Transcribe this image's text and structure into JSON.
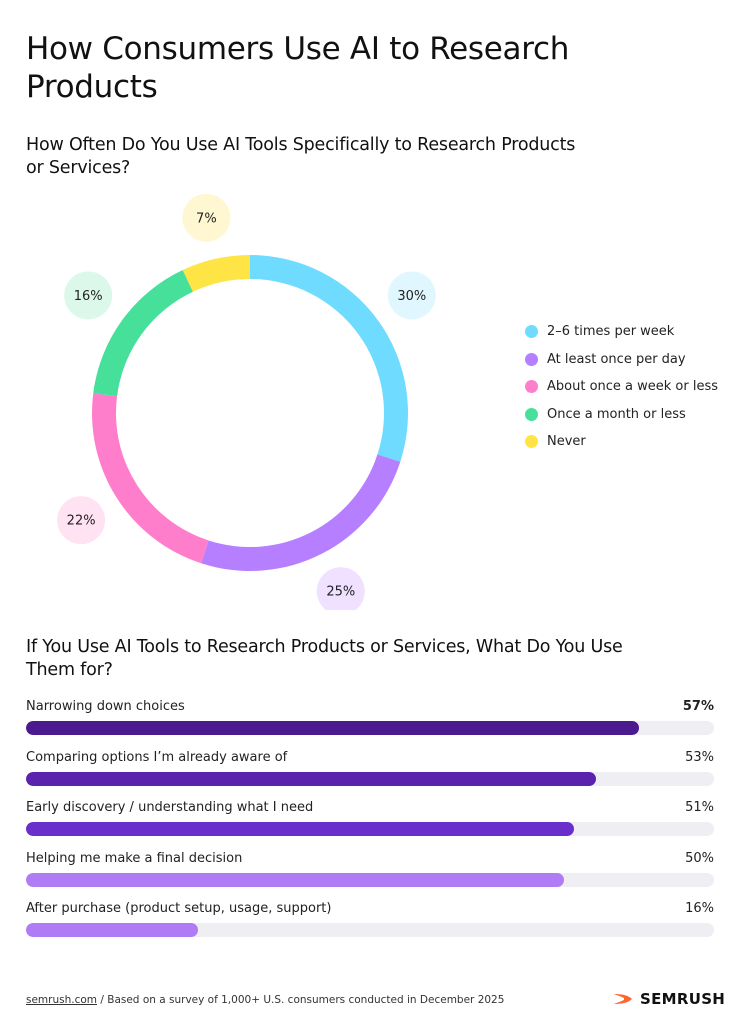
{
  "title": "How Consumers Use AI to Research Products",
  "donut_section": {
    "title": "How Often Do You Use AI Tools Specifically to Research Products or Services?"
  },
  "bar_section": {
    "title": "If You Use AI Tools to Research Products or Services, What Do You Use Them for?"
  },
  "footer": {
    "source": "semrush.com",
    "note": " / Based on a survey of 1,000+ U.S. consumers conducted in December 2025",
    "brand": "SEMRUSH",
    "brand_color": "#ff642d"
  },
  "chart_data": [
    {
      "type": "pie",
      "variant": "donut",
      "legend_position": "right",
      "categories": [
        "2–6 times per week",
        "At least once per day",
        "About once a week or less",
        "Once a month or less",
        "Never"
      ],
      "values": [
        30,
        25,
        22,
        16,
        7
      ],
      "value_labels": [
        "30%",
        "25%",
        "22%",
        "16%",
        "7%"
      ],
      "colors": [
        "#6fdcff",
        "#b57fff",
        "#ff7ecc",
        "#47e09b",
        "#ffe445"
      ],
      "label_bubble_colors": [
        "#e1f7ff",
        "#efe1ff",
        "#ffe3f3",
        "#dcf8eb",
        "#fff7d1"
      ]
    },
    {
      "type": "bar",
      "orientation": "horizontal",
      "categories": [
        "Narrowing down choices",
        "Comparing options I’m already aware of",
        "Early discovery / understanding what I need",
        "Helping me make a final decision",
        "After purchase (product setup, usage, support)"
      ],
      "values": [
        57,
        53,
        51,
        50,
        16
      ],
      "value_labels": [
        "57%",
        "53%",
        "51%",
        "50%",
        "16%"
      ],
      "bar_colors": [
        "#4b1a8f",
        "#5b22ad",
        "#6a2fcb",
        "#b07cf6",
        "#b07cf6"
      ],
      "track_color": "#eeeef3",
      "xlim": [
        0,
        64
      ]
    }
  ]
}
